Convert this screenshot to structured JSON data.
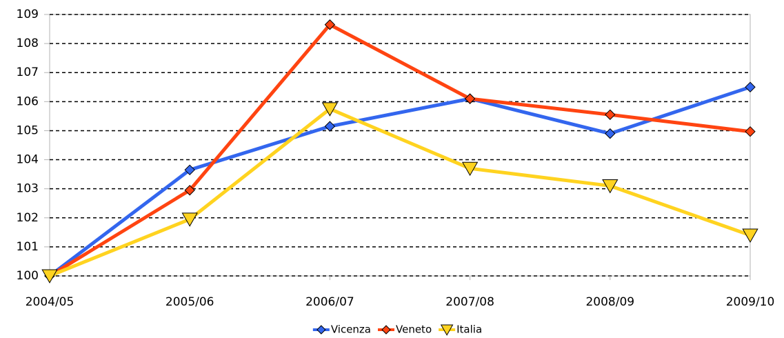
{
  "chart_data": {
    "type": "line",
    "categories": [
      "2004/05",
      "2005/06",
      "2006/07",
      "2007/08",
      "2008/09",
      "2009/10"
    ],
    "series": [
      {
        "name": "Vicenza",
        "color": "#3366ee",
        "marker": "diamond",
        "values": [
          100,
          103.65,
          105.15,
          106.1,
          104.9,
          106.5
        ]
      },
      {
        "name": "Veneto",
        "color": "#ff4411",
        "marker": "diamond",
        "values": [
          100,
          102.95,
          108.65,
          106.1,
          105.55,
          104.97
        ]
      },
      {
        "name": "Italia",
        "color": "#ffd320",
        "marker": "triangle-down",
        "values": [
          100,
          101.95,
          105.75,
          103.7,
          103.1,
          101.4
        ]
      }
    ],
    "ylim": [
      100,
      109
    ],
    "yticks": [
      100,
      101,
      102,
      103,
      104,
      105,
      106,
      107,
      108,
      109
    ],
    "grid": true,
    "legend": "bottom"
  }
}
